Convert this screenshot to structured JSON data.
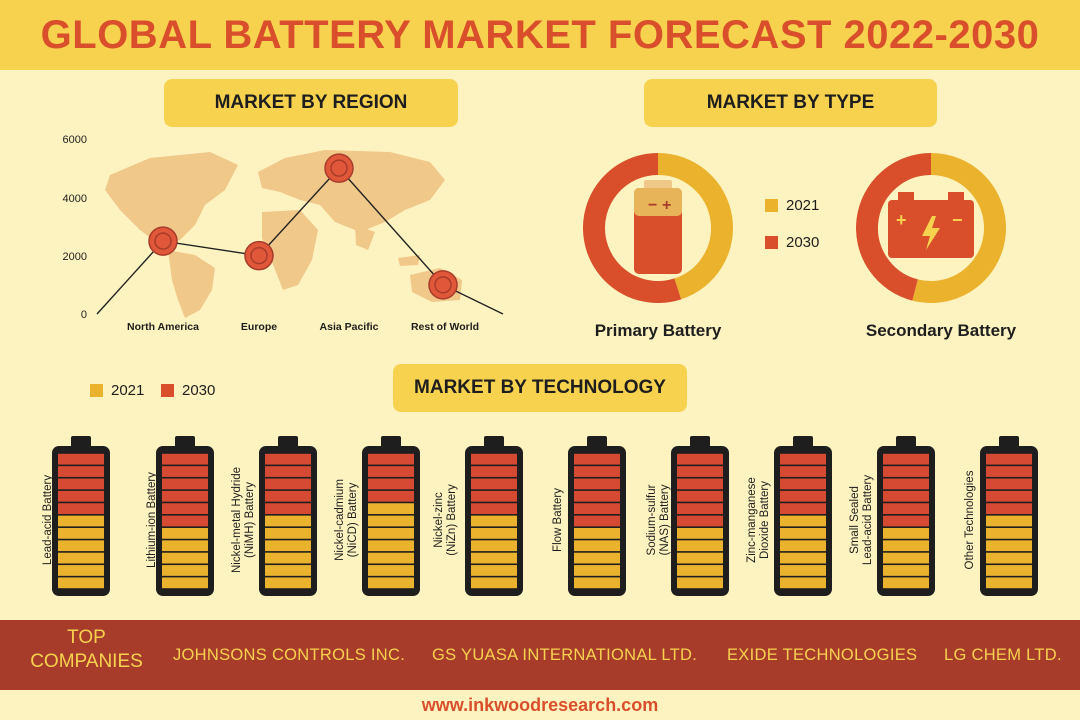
{
  "title": "GLOBAL BATTERY MARKET FORECAST 2022-2030",
  "sections": {
    "region": "MARKET BY REGION",
    "type": "MARKET BY TYPE",
    "technology": "MARKET BY TECHNOLOGY"
  },
  "colors": {
    "y2021": "#ebb22e",
    "y2030": "#d94f2b",
    "accent": "#f7d24f",
    "footer": "#a83c2a",
    "map": "#f0c88a"
  },
  "chart_data": [
    {
      "type": "line",
      "title": "MARKET BY REGION",
      "categories": [
        "North America",
        "Europe",
        "Asia Pacific",
        "Rest of World"
      ],
      "values": [
        2500,
        2000,
        5000,
        1000
      ],
      "yticks": [
        0,
        2000,
        4000,
        6000
      ],
      "ylim": [
        0,
        6000
      ],
      "grid": false
    },
    {
      "type": "pie",
      "title": "MARKET BY TYPE",
      "legend": [
        "2021",
        "2030"
      ],
      "charts": [
        {
          "label": "Primary Battery",
          "slices": [
            {
              "name": "2021",
              "value": 45
            },
            {
              "name": "2030",
              "value": 55
            }
          ]
        },
        {
          "label": "Secondary Battery",
          "slices": [
            {
              "name": "2021",
              "value": 54
            },
            {
              "name": "2030",
              "value": 46
            }
          ]
        }
      ]
    },
    {
      "type": "bar",
      "title": "MARKET BY TECHNOLOGY",
      "legend": [
        "2021",
        "2030"
      ],
      "segments_total": 11,
      "categories": [
        "Lead-acid Battery",
        "Lithium-ion Battery",
        "Nickel-metal Hydride (NiMH) Battery",
        "Nickel-cadmium (NiCD) Battery",
        "Nickel-zinc (NiZn) Battery",
        "Flow Battery",
        "Sodium-sulfur (NAS) Battery",
        "Zinc-manganese Dioxide Battery",
        "Small Sealed Lead-acid Battery",
        "Other Technologies"
      ],
      "series": [
        {
          "name": "2021",
          "values": [
            6,
            5,
            6,
            7,
            6,
            5,
            5,
            6,
            5,
            6
          ]
        },
        {
          "name": "2030",
          "values": [
            5,
            6,
            5,
            4,
            5,
            6,
            6,
            5,
            6,
            5
          ]
        }
      ]
    }
  ],
  "footer": {
    "top_companies_line1": "TOP",
    "top_companies_line2": "COMPANIES",
    "companies": [
      "JOHNSONS CONTROLS INC.",
      "GS YUASA INTERNATIONAL LTD.",
      "EXIDE TECHNOLOGIES",
      "LG CHEM LTD."
    ],
    "url": "www.inkwoodresearch.com"
  }
}
